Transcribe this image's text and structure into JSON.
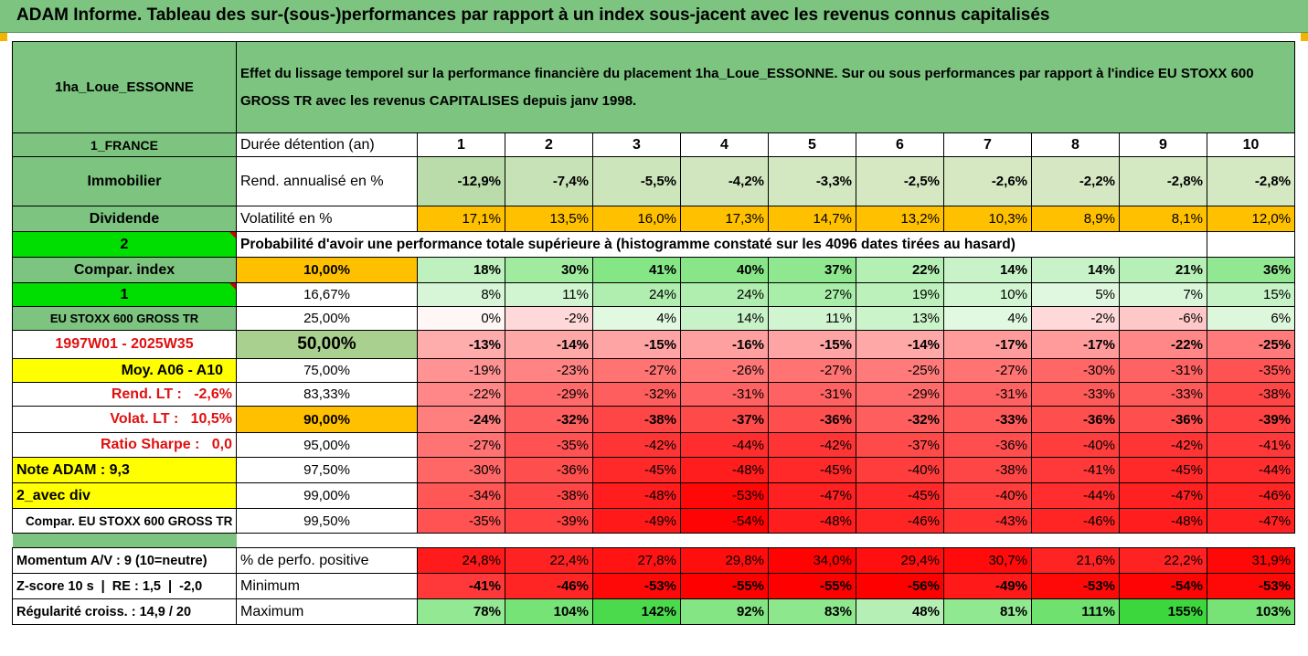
{
  "header": {
    "title": "ADAM Informe. Tableau des sur-(sous-)performances par rapport à un index sous-jacent avec les revenus connus capitalisés"
  },
  "placement": {
    "name": "1ha_Loue_ESSONNE",
    "description": "Effet du lissage temporel sur la performance financière du placement 1ha_Loue_ESSONNE. Sur ou sous performances par rapport à l'indice EU STOXX 600 GROSS TR avec les revenus CAPITALISES depuis janv 1998."
  },
  "left_labels": {
    "country": "1_FRANCE",
    "category": "Immobilier",
    "dividend": "Dividende",
    "num2": "2",
    "compar_index": "Compar. index",
    "num1": "1",
    "index_name": "EU STOXX 600 GROSS TR",
    "period": "1997W01 - 2025W35",
    "moy": "Moy. A06 - A10",
    "rend_lt": "Rend. LT :   -2,6%",
    "volat_lt": "Volat. LT :   10,5%",
    "sharpe": "Ratio Sharpe :   0,0",
    "note": "Note ADAM : 9,3",
    "avec_div": "2_avec div",
    "compar_eu": "Compar. EU STOXX 600 GROSS TR",
    "momentum": "Momentum A/V : 9 (10=neutre)",
    "zscore": "Z-score 10 s  |  RE : 1,5  |  -2,0",
    "regularite": "Régularité croiss. : 14,9 / 20"
  },
  "row_labels": {
    "duree": "Durée détention (an)",
    "rend": "Rend. annualisé en %",
    "volat": "Volatilité en %",
    "proba": "Probabilité d'avoir une performance totale supérieure à (histogramme constaté sur les 4096 dates tirées au hasard)",
    "perfo_pos": "% de perfo. positive",
    "minimum": "Minimum",
    "maximum": "Maximum"
  },
  "years": [
    "1",
    "2",
    "3",
    "4",
    "5",
    "6",
    "7",
    "8",
    "9",
    "10"
  ],
  "rend": [
    "-12,9%",
    "-7,4%",
    "-5,5%",
    "-4,2%",
    "-3,3%",
    "-2,5%",
    "-2,6%",
    "-2,2%",
    "-2,8%",
    "-2,8%"
  ],
  "volat": [
    "17,1%",
    "13,5%",
    "16,0%",
    "17,3%",
    "14,7%",
    "13,2%",
    "10,3%",
    "8,9%",
    "8,1%",
    "12,0%"
  ],
  "quantiles": [
    {
      "level": "10,00%",
      "values": [
        "18%",
        "30%",
        "41%",
        "40%",
        "37%",
        "22%",
        "14%",
        "14%",
        "21%",
        "36%"
      ]
    },
    {
      "level": "16,67%",
      "values": [
        "8%",
        "11%",
        "24%",
        "24%",
        "27%",
        "19%",
        "10%",
        "5%",
        "7%",
        "15%"
      ]
    },
    {
      "level": "25,00%",
      "values": [
        "0%",
        "-2%",
        "4%",
        "14%",
        "11%",
        "13%",
        "4%",
        "-2%",
        "-6%",
        "6%"
      ]
    },
    {
      "level": "50,00%",
      "values": [
        "-13%",
        "-14%",
        "-15%",
        "-16%",
        "-15%",
        "-14%",
        "-17%",
        "-17%",
        "-22%",
        "-25%"
      ]
    },
    {
      "level": "75,00%",
      "values": [
        "-19%",
        "-23%",
        "-27%",
        "-26%",
        "-27%",
        "-25%",
        "-27%",
        "-30%",
        "-31%",
        "-35%"
      ]
    },
    {
      "level": "83,33%",
      "values": [
        "-22%",
        "-29%",
        "-32%",
        "-31%",
        "-31%",
        "-29%",
        "-31%",
        "-33%",
        "-33%",
        "-38%"
      ]
    },
    {
      "level": "90,00%",
      "values": [
        "-24%",
        "-32%",
        "-38%",
        "-37%",
        "-36%",
        "-32%",
        "-33%",
        "-36%",
        "-36%",
        "-39%"
      ]
    },
    {
      "level": "95,00%",
      "values": [
        "-27%",
        "-35%",
        "-42%",
        "-44%",
        "-42%",
        "-37%",
        "-36%",
        "-40%",
        "-42%",
        "-41%"
      ]
    },
    {
      "level": "97,50%",
      "values": [
        "-30%",
        "-36%",
        "-45%",
        "-48%",
        "-45%",
        "-40%",
        "-38%",
        "-41%",
        "-45%",
        "-44%"
      ]
    },
    {
      "level": "99,00%",
      "values": [
        "-34%",
        "-38%",
        "-48%",
        "-53%",
        "-47%",
        "-45%",
        "-40%",
        "-44%",
        "-47%",
        "-46%"
      ]
    },
    {
      "level": "99,50%",
      "values": [
        "-35%",
        "-39%",
        "-49%",
        "-54%",
        "-48%",
        "-46%",
        "-43%",
        "-46%",
        "-48%",
        "-47%"
      ]
    }
  ],
  "perfo_pos": [
    "24,8%",
    "22,4%",
    "27,8%",
    "29,8%",
    "34,0%",
    "29,4%",
    "30,7%",
    "21,6%",
    "22,2%",
    "31,9%"
  ],
  "minimum": [
    "-41%",
    "-46%",
    "-53%",
    "-55%",
    "-55%",
    "-56%",
    "-49%",
    "-53%",
    "-54%",
    "-53%"
  ],
  "maximum": [
    "78%",
    "104%",
    "142%",
    "92%",
    "83%",
    "48%",
    "81%",
    "111%",
    "155%",
    "103%"
  ],
  "colors": {
    "header_green": "#7cc47f",
    "lime": "#00dd00",
    "yellow": "#ffff00",
    "orange": "#ffc000",
    "red_text": "#e01010"
  }
}
